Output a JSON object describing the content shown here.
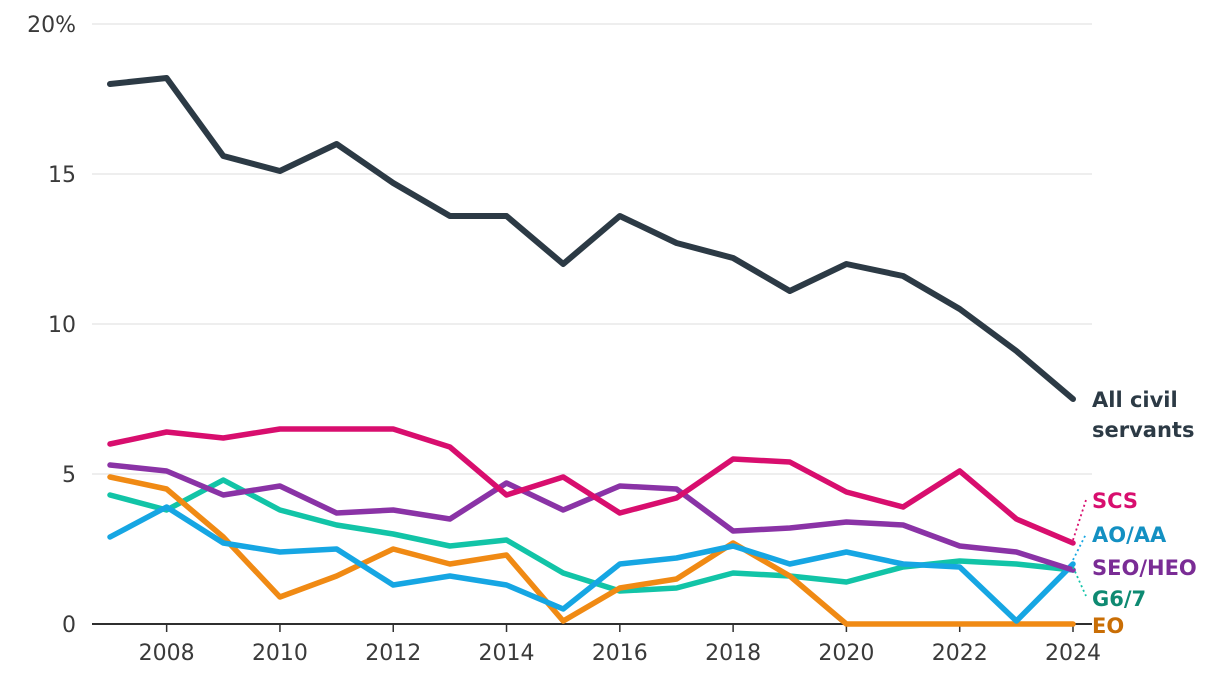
{
  "chart_data": {
    "type": "line",
    "title": "",
    "xlabel": "",
    "ylabel": "",
    "ylim": [
      0,
      20
    ],
    "xlim": [
      2007,
      2024
    ],
    "y_ticks": [
      {
        "value": 0,
        "label": "0"
      },
      {
        "value": 5,
        "label": "5"
      },
      {
        "value": 10,
        "label": "10"
      },
      {
        "value": 15,
        "label": "15"
      },
      {
        "value": 20,
        "label": "20%"
      }
    ],
    "x_ticks": [
      {
        "value": 2008,
        "label": "2008"
      },
      {
        "value": 2010,
        "label": "2010"
      },
      {
        "value": 2012,
        "label": "2012"
      },
      {
        "value": 2014,
        "label": "2014"
      },
      {
        "value": 2016,
        "label": "2016"
      },
      {
        "value": 2018,
        "label": "2018"
      },
      {
        "value": 2020,
        "label": "2020"
      },
      {
        "value": 2022,
        "label": "2022"
      },
      {
        "value": 2024,
        "label": "2024"
      }
    ],
    "x": [
      2007,
      2008,
      2009,
      2010,
      2011,
      2012,
      2013,
      2014,
      2015,
      2016,
      2017,
      2018,
      2019,
      2020,
      2021,
      2022,
      2023,
      2024
    ],
    "series": [
      {
        "key": "g67",
        "name": "G6/7",
        "color": "#12c4a7",
        "label_color": "#0e8a72",
        "values": [
          4.3,
          3.8,
          4.8,
          3.8,
          3.3,
          3.0,
          2.6,
          2.8,
          1.7,
          1.1,
          1.2,
          1.7,
          1.6,
          1.4,
          1.9,
          2.1,
          2.0,
          1.8
        ]
      },
      {
        "key": "eo",
        "name": "EO",
        "color": "#f08a14",
        "label_color": "#c96e05",
        "values": [
          4.9,
          4.5,
          2.9,
          0.9,
          1.6,
          2.5,
          2.0,
          2.3,
          0.1,
          1.2,
          1.5,
          2.7,
          1.6,
          0.0,
          0.0,
          0.0,
          0.0,
          0.0
        ]
      },
      {
        "key": "aoaa",
        "name": "AO/AA",
        "color": "#16a6e3",
        "label_color": "#1390c2",
        "values": [
          2.9,
          3.9,
          2.7,
          2.4,
          2.5,
          1.3,
          1.6,
          1.3,
          0.5,
          2.0,
          2.2,
          2.6,
          2.0,
          2.4,
          2.0,
          1.9,
          0.1,
          2.0
        ]
      },
      {
        "key": "seoheo",
        "name": "SEO/HEO",
        "color": "#8a33a6",
        "label_color": "#7a2c95",
        "values": [
          5.3,
          5.1,
          4.3,
          4.6,
          3.7,
          3.8,
          3.5,
          4.7,
          3.8,
          4.6,
          4.5,
          3.1,
          3.2,
          3.4,
          3.3,
          2.6,
          2.4,
          1.8
        ]
      },
      {
        "key": "scs",
        "name": "SCS",
        "color": "#d80e6e",
        "label_color": "#d80e6e",
        "values": [
          6.0,
          6.4,
          6.2,
          6.5,
          6.5,
          6.5,
          5.9,
          4.3,
          4.9,
          3.7,
          4.2,
          5.5,
          5.4,
          4.4,
          3.9,
          5.1,
          3.5,
          2.7
        ]
      },
      {
        "key": "all",
        "name": "All civil servants",
        "name_lines": [
          "All civil",
          "servants"
        ],
        "color": "#2c3a45",
        "label_color": "#2c3a45",
        "values": [
          18.0,
          18.2,
          15.6,
          15.1,
          16.0,
          14.7,
          13.6,
          13.6,
          12.0,
          13.6,
          12.7,
          12.2,
          11.1,
          12.0,
          11.6,
          10.5,
          9.1,
          7.5
        ]
      }
    ]
  }
}
